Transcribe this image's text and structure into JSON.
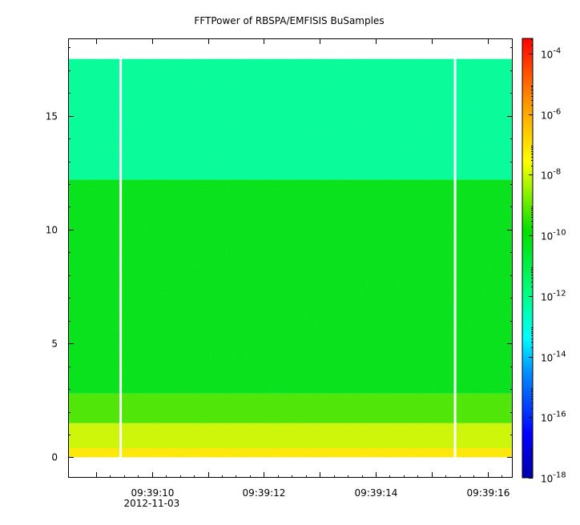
{
  "chart_data": {
    "type": "heatmap",
    "title": "FFTPower of RBSPA/EMFISIS  BuSamples",
    "xlabel": "",
    "ylabel": "",
    "x_ticks": [
      {
        "label": "09:39:10",
        "sublabel": "2012-11-03",
        "seconds": 10
      },
      {
        "label": "09:39:12",
        "sublabel": "",
        "seconds": 12
      },
      {
        "label": "09:39:14",
        "sublabel": "",
        "seconds": 14
      },
      {
        "label": "09:39:16",
        "sublabel": "",
        "seconds": 16
      }
    ],
    "x_minor_ticks_seconds": [
      9,
      11,
      13,
      15
    ],
    "x_range_seconds": [
      8.5,
      16.45
    ],
    "y_ticks": [
      0,
      5,
      10,
      15
    ],
    "ylim": [
      -0.9,
      18.4
    ],
    "data_y_range": [
      0,
      17.5
    ],
    "data_gaps_seconds": [
      9.44,
      15.42
    ],
    "colorbar": {
      "scale": "log",
      "range_exponent": [
        -18,
        -3.5
      ],
      "ticks": [
        {
          "base": "10",
          "exp": "-4"
        },
        {
          "base": "10",
          "exp": "-6"
        },
        {
          "base": "10",
          "exp": "-8"
        },
        {
          "base": "10",
          "exp": "-10"
        },
        {
          "base": "10",
          "exp": "-12"
        },
        {
          "base": "10",
          "exp": "-14"
        },
        {
          "base": "10",
          "exp": "-16"
        },
        {
          "base": "10",
          "exp": "-18"
        }
      ],
      "colors": [
        "#0000aa",
        "#0000ff",
        "#0090ff",
        "#00ffff",
        "#00ff80",
        "#00e000",
        "#ffff00",
        "#ff9000",
        "#ff0000"
      ]
    },
    "bands": [
      {
        "y_from": 0,
        "y_to": 0.4,
        "log_power": -7.2
      },
      {
        "y_from": 0.4,
        "y_to": 1.5,
        "log_power": -8.0
      },
      {
        "y_from": 1.5,
        "y_to": 2.8,
        "log_power": -9.2
      },
      {
        "y_from": 2.8,
        "y_to": 12.2,
        "log_power": -10.2
      },
      {
        "y_from": 12.2,
        "y_to": 17.5,
        "log_power": -12.2
      }
    ]
  }
}
